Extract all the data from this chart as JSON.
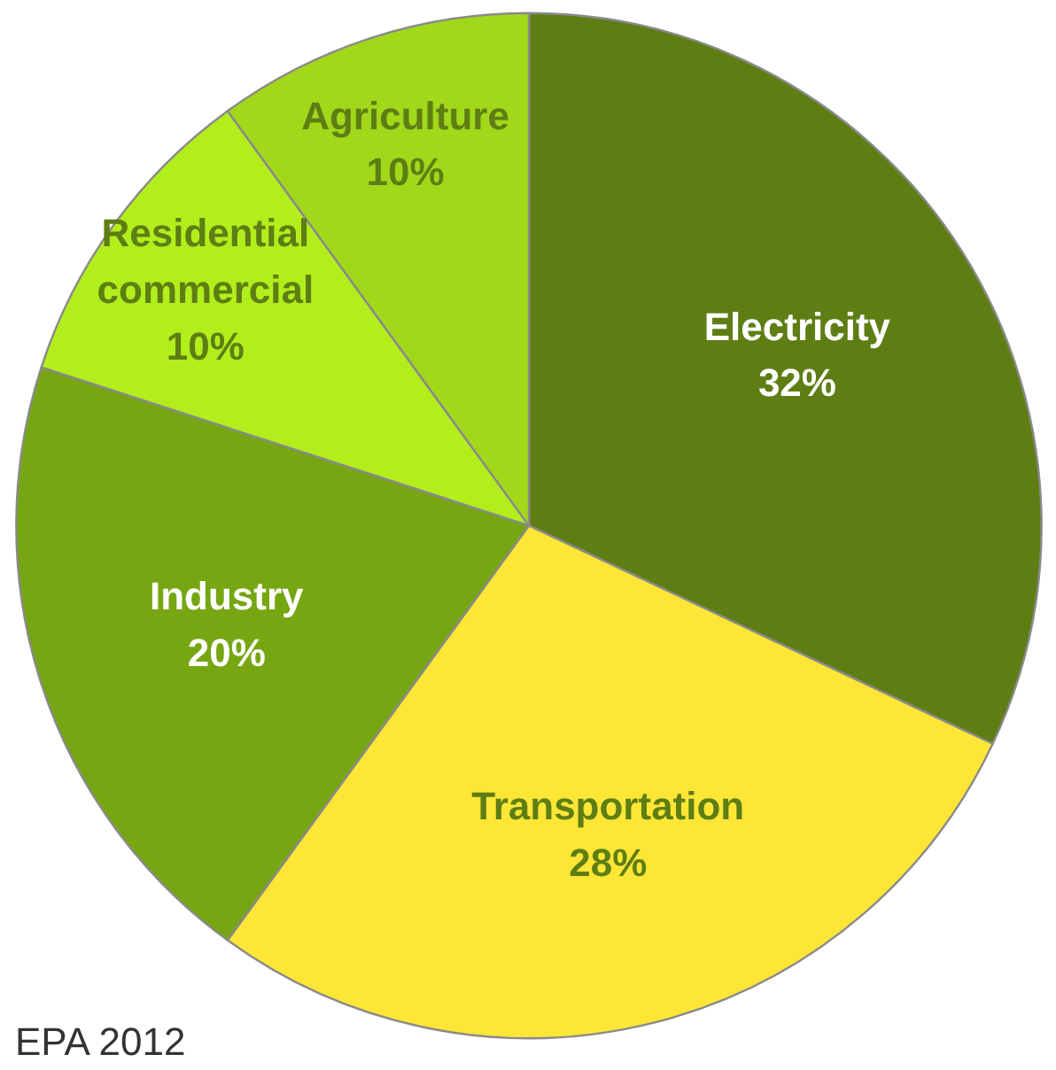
{
  "chart_data": {
    "type": "pie",
    "categories": [
      "Electricity",
      "Transportation",
      "Industry",
      "Residential\ncommercial",
      "Agriculture"
    ],
    "values": [
      32,
      28,
      20,
      10,
      10
    ],
    "colors": [
      "#5e7e14",
      "#fde636",
      "#76a612",
      "#b2ee1c",
      "#a2d81a"
    ],
    "value_labels": [
      "32%",
      "28%",
      "20%",
      "10%",
      "10%"
    ],
    "annotations": [
      "EPA 2012"
    ]
  }
}
